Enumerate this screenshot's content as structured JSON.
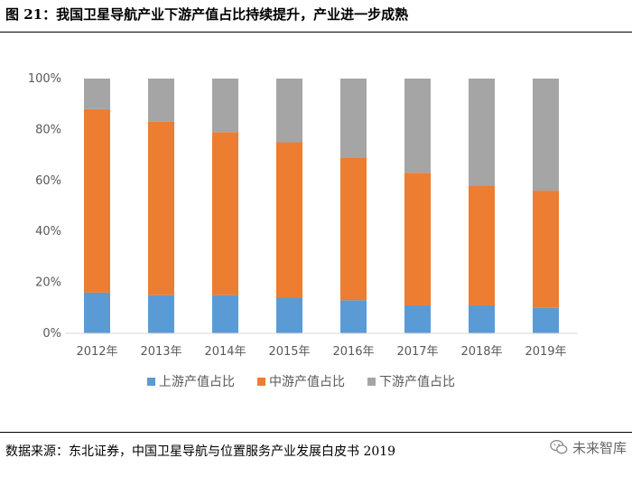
{
  "figure": {
    "title": "图 21：我国卫星导航产业下游产值占比持续提升，产业进一步成熟",
    "source": "数据来源：东北证券，中国卫星导航与位置服务产业发展白皮书 2019",
    "watermark": "未来智库"
  },
  "colors": {
    "upstream": "#5b9bd5",
    "midstream": "#ed7d31",
    "downstream": "#a5a5a5",
    "axis": "#d9d9d9",
    "text": "#595959"
  },
  "chart_data": {
    "type": "bar",
    "stacked": true,
    "title": "",
    "xlabel": "",
    "ylabel": "",
    "ylim": [
      0,
      100
    ],
    "y_ticks": [
      "0%",
      "20%",
      "40%",
      "60%",
      "80%",
      "100%"
    ],
    "y_tick_values": [
      0,
      20,
      40,
      60,
      80,
      100
    ],
    "categories": [
      "2012年",
      "2013年",
      "2014年",
      "2015年",
      "2016年",
      "2017年",
      "2018年",
      "2019年"
    ],
    "series": [
      {
        "name": "上游产值占比",
        "color_key": "upstream",
        "values": [
          16,
          15,
          15,
          14,
          13,
          11,
          11,
          10
        ]
      },
      {
        "name": "中游产值占比",
        "color_key": "midstream",
        "values": [
          72,
          68,
          64,
          61,
          56,
          52,
          47,
          46
        ]
      },
      {
        "name": "下游产值占比",
        "color_key": "downstream",
        "values": [
          12,
          17,
          21,
          25,
          31,
          37,
          42,
          44
        ]
      }
    ],
    "legend_position": "bottom",
    "grid": false
  }
}
